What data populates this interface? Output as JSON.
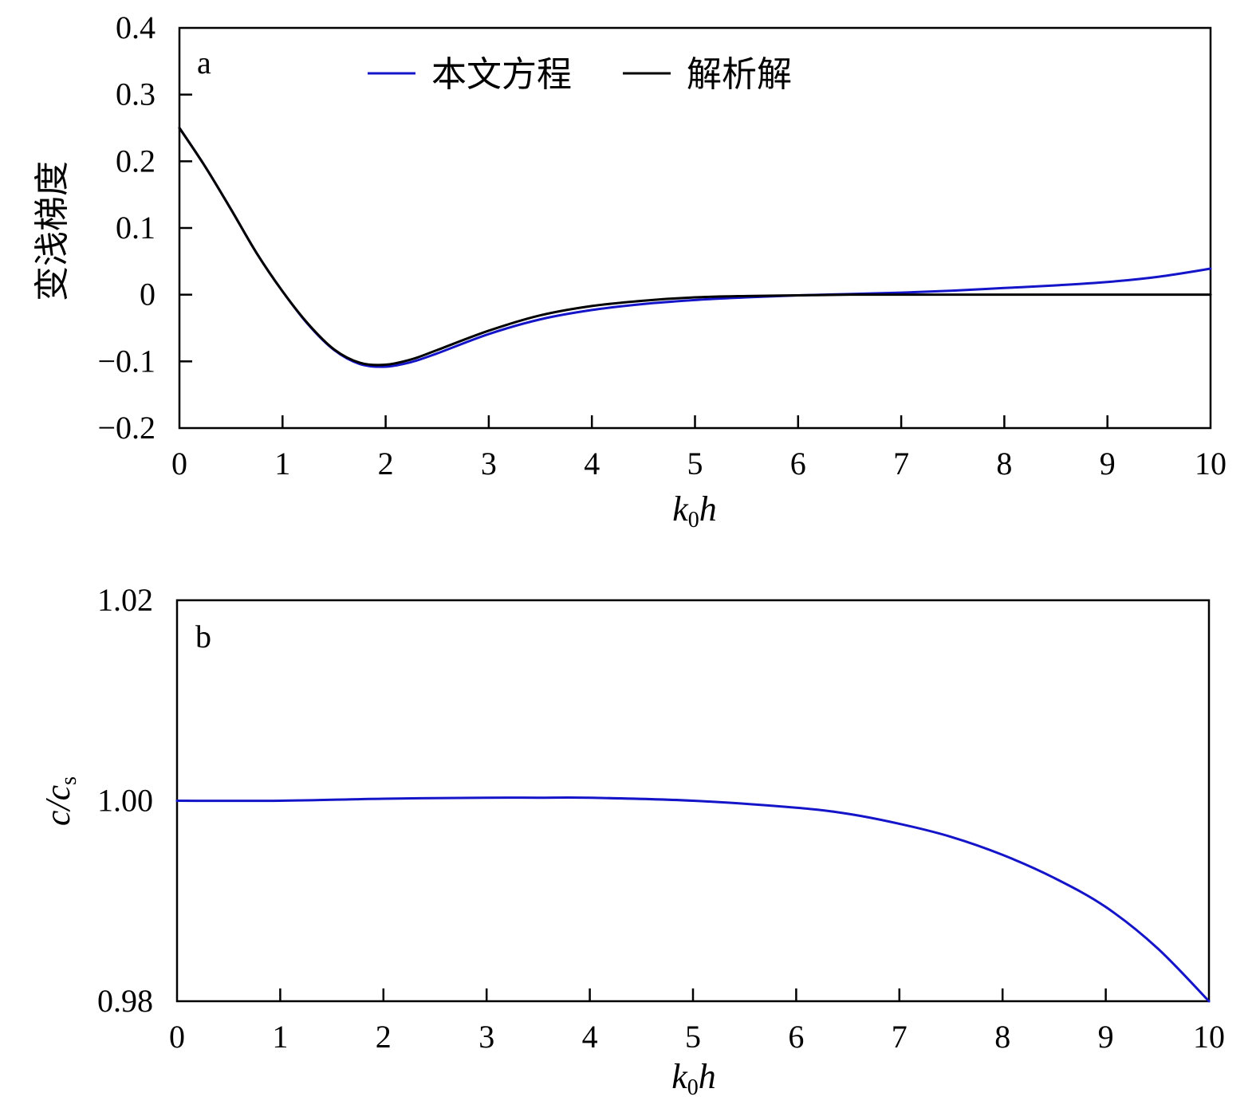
{
  "chart_data": [
    {
      "type": "line",
      "panel_label": "a",
      "xlabel": "k0h",
      "ylabel": "变浅梯度",
      "xlim": [
        0,
        10
      ],
      "ylim": [
        -0.2,
        0.4
      ],
      "x_ticks": [
        "0",
        "1",
        "2",
        "3",
        "4",
        "5",
        "6",
        "7",
        "8",
        "9",
        "10"
      ],
      "y_ticks": [
        "0.4",
        "0.3",
        "0.2",
        "0.1",
        "0",
        "−0.1",
        "−0.2"
      ],
      "y_tick_values": [
        0.4,
        0.3,
        0.2,
        0.1,
        0,
        -0.1,
        -0.2
      ],
      "legend_position": "top-center",
      "grid": false,
      "x": [
        0,
        0.25,
        0.5,
        0.75,
        1.0,
        1.25,
        1.5,
        1.75,
        2.0,
        2.25,
        2.5,
        3.0,
        3.5,
        4.0,
        4.5,
        5.0,
        5.5,
        6.0,
        6.5,
        7.0,
        7.5,
        8.0,
        8.5,
        9.0,
        9.5,
        10.0
      ],
      "series": [
        {
          "name": "本文方程",
          "color": "#1414c8",
          "values": [
            0.25,
            0.192,
            0.128,
            0.062,
            0.005,
            -0.045,
            -0.083,
            -0.104,
            -0.108,
            -0.101,
            -0.088,
            -0.059,
            -0.037,
            -0.023,
            -0.014,
            -0.008,
            -0.004,
            -0.001,
            0.001,
            0.003,
            0.006,
            0.01,
            0.014,
            0.019,
            0.027,
            0.039
          ]
        },
        {
          "name": "解析解",
          "color": "#000000",
          "values": [
            0.25,
            0.192,
            0.128,
            0.062,
            0.005,
            -0.044,
            -0.082,
            -0.102,
            -0.105,
            -0.097,
            -0.083,
            -0.054,
            -0.031,
            -0.017,
            -0.009,
            -0.004,
            -0.002,
            -0.001,
            0,
            0,
            0,
            0,
            0,
            0,
            0,
            0
          ]
        }
      ]
    },
    {
      "type": "line",
      "panel_label": "b",
      "xlabel": "k0h",
      "ylabel": "c/cs",
      "xlim": [
        0,
        10
      ],
      "ylim": [
        0.98,
        1.02
      ],
      "x_ticks": [
        "0",
        "1",
        "2",
        "3",
        "4",
        "5",
        "6",
        "7",
        "8",
        "9",
        "10"
      ],
      "y_ticks": [
        "1.02",
        "1.00",
        "0.98"
      ],
      "y_tick_values": [
        1.02,
        1.0,
        0.98
      ],
      "grid": false,
      "x": [
        0,
        1,
        2,
        3,
        3.5,
        4,
        5,
        6,
        6.5,
        7,
        7.5,
        8,
        8.5,
        9,
        9.5,
        10
      ],
      "series": [
        {
          "color": "#1414c8",
          "values": [
            1.0,
            1.0,
            1.0002,
            1.0003,
            1.0003,
            1.0003,
            1.0,
            0.9993,
            0.9987,
            0.9977,
            0.9964,
            0.9946,
            0.9923,
            0.9894,
            0.9853,
            0.98
          ]
        }
      ]
    }
  ]
}
